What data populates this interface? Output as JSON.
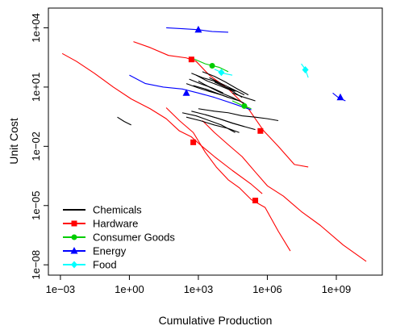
{
  "chart_data": {
    "type": "line",
    "title": "",
    "xlabel": "Cumulative Production",
    "ylabel": "Unit Cost",
    "x_scale": "log10",
    "y_scale": "log10",
    "xlim": [
      0.0003,
      100000000000
    ],
    "ylim": [
      3e-09,
      100000
    ],
    "x_ticks": [
      {
        "value": 0.001,
        "label": "1e−03"
      },
      {
        "value": 1,
        "label": "1e+00"
      },
      {
        "value": 1000,
        "label": "1e+03"
      },
      {
        "value": 1000000,
        "label": "1e+06"
      },
      {
        "value": 1000000000,
        "label": "1e+09"
      }
    ],
    "y_ticks": [
      {
        "value": 1e-08,
        "label": "1e−08"
      },
      {
        "value": 1e-05,
        "label": "1e−05"
      },
      {
        "value": 0.01,
        "label": "1e−02"
      },
      {
        "value": 10,
        "label": "1e+01"
      },
      {
        "value": 10000,
        "label": "1e+04"
      }
    ],
    "legend": {
      "position": "bottom-left",
      "entries": [
        {
          "label": "Chemicals",
          "color": "#000000",
          "marker": "none"
        },
        {
          "label": "Hardware",
          "color": "#ff0000",
          "marker": "square"
        },
        {
          "label": "Consumer Goods",
          "color": "#00cd00",
          "marker": "circle"
        },
        {
          "label": "Energy",
          "color": "#0000ff",
          "marker": "triangle"
        },
        {
          "label": "Food",
          "color": "#00ffff",
          "marker": "diamond"
        }
      ]
    },
    "series": [
      {
        "group": "Hardware",
        "color": "#ff0000",
        "x": [
          0.0012,
          0.005,
          0.03,
          0.2,
          1.2,
          8,
          40,
          150,
          500,
          1200,
          5000,
          30000,
          200000,
          600000
        ],
        "y": [
          500,
          200,
          50,
          10,
          2.5,
          0.8,
          0.25,
          0.06,
          0.03,
          0.012,
          0.003,
          0.0006,
          0.00012,
          4e-05
        ],
        "markers": [
          {
            "x": 600,
            "y": 0.016
          }
        ]
      },
      {
        "group": "Hardware",
        "color": "#ff0000",
        "x": [
          40,
          150,
          600,
          2000,
          6000,
          20000,
          60000,
          200000,
          800000,
          3000000,
          10000000
        ],
        "y": [
          0.9,
          0.2,
          0.05,
          0.005,
          0.0009,
          0.0002,
          8e-05,
          2e-05,
          8e-06,
          5e-07,
          5e-08
        ],
        "markers": [
          {
            "x": 300000,
            "y": 1.8e-05
          }
        ]
      },
      {
        "group": "Hardware",
        "color": "#ff0000",
        "x": [
          1500,
          5000,
          20000,
          80000,
          300000,
          1000000,
          5000000,
          30000000,
          200000000,
          2000000000,
          20000000000
        ],
        "y": [
          0.2,
          0.05,
          0.012,
          0.003,
          0.0005,
          0.0001,
          3e-05,
          5e-06,
          1e-06,
          1e-07,
          1.5e-08
        ]
      },
      {
        "group": "Hardware",
        "color": "#ff0000",
        "x": [
          1.5,
          8,
          50,
          300,
          800,
          3000,
          20000,
          150000,
          700000,
          3000000,
          15000000,
          60000000
        ],
        "y": [
          2000,
          1000,
          400,
          300,
          200,
          40,
          8,
          0.8,
          0.06,
          0.01,
          0.0012,
          0.0009
        ],
        "markers": [
          {
            "x": 500,
            "y": 250
          },
          {
            "x": 500000,
            "y": 0.06
          }
        ]
      },
      {
        "group": "Energy",
        "color": "#0000ff",
        "x": [
          40,
          200,
          1000,
          4000,
          20000
        ],
        "y": [
          10000,
          9000,
          8000,
          6500,
          6000
        ],
        "markers": [
          {
            "x": 1000,
            "y": 8000
          }
        ]
      },
      {
        "group": "Energy",
        "color": "#0000ff",
        "x": [
          1,
          5,
          30,
          200,
          1000,
          5000,
          30000,
          200000
        ],
        "y": [
          40,
          15,
          10,
          8,
          5,
          3,
          1.5,
          0.7
        ],
        "markers": [
          {
            "x": 300,
            "y": 5
          }
        ]
      },
      {
        "group": "Energy",
        "color": "#0000ff",
        "x": [
          700000000,
          1200000000,
          2500000000
        ],
        "y": [
          5,
          3,
          2
        ],
        "markers": [
          {
            "x": 1500000000,
            "y": 3
          }
        ]
      },
      {
        "group": "Consumer Goods",
        "color": "#00cd00",
        "x": [
          500,
          2000,
          8000,
          20000
        ],
        "y": [
          300,
          150,
          100,
          60
        ],
        "markers": [
          {
            "x": 4000,
            "y": 120
          }
        ]
      },
      {
        "group": "Consumer Goods",
        "color": "#00cd00",
        "x": [
          30000,
          80000,
          200000
        ],
        "y": [
          2,
          1.2,
          0.8
        ],
        "markers": [
          {
            "x": 100000,
            "y": 1.1
          }
        ]
      },
      {
        "group": "Food",
        "color": "#00ffff",
        "x": [
          5000,
          12000,
          30000
        ],
        "y": [
          80,
          50,
          40
        ],
        "markers": [
          {
            "x": 10000,
            "y": 55
          }
        ]
      },
      {
        "group": "Food",
        "color": "#00ffff",
        "x": [
          30000000,
          45000000,
          60000000
        ],
        "y": [
          150,
          80,
          30
        ],
        "markers": [
          {
            "x": 45000000,
            "y": 75
          }
        ]
      },
      {
        "group": "Chemicals",
        "color": "#000000",
        "x": [
          500,
          1500,
          5000,
          15000,
          40000
        ],
        "y": [
          50,
          30,
          20,
          10,
          6
        ]
      },
      {
        "group": "Chemicals",
        "color": "#000000",
        "x": [
          400,
          1200,
          4000,
          12000
        ],
        "y": [
          25,
          15,
          9,
          5
        ]
      },
      {
        "group": "Chemicals",
        "color": "#000000",
        "x": [
          800,
          2500,
          8000,
          25000,
          80000
        ],
        "y": [
          40,
          20,
          12,
          7,
          3
        ]
      },
      {
        "group": "Chemicals",
        "color": "#000000",
        "x": [
          300,
          1000,
          3000,
          10000
        ],
        "y": [
          15,
          9,
          6,
          4
        ]
      },
      {
        "group": "Chemicals",
        "color": "#000000",
        "x": [
          1000,
          3000,
          10000,
          30000,
          100000
        ],
        "y": [
          20,
          10,
          5,
          3,
          1.5
        ]
      },
      {
        "group": "Chemicals",
        "color": "#000000",
        "x": [
          2000,
          6000,
          20000,
          60000
        ],
        "y": [
          8,
          5,
          3,
          2
        ]
      },
      {
        "group": "Chemicals",
        "color": "#000000",
        "x": [
          600,
          2000,
          6000,
          20000
        ],
        "y": [
          12,
          8,
          5,
          3
        ]
      },
      {
        "group": "Chemicals",
        "color": "#000000",
        "x": [
          1500,
          5000,
          15000,
          50000,
          150000
        ],
        "y": [
          60,
          35,
          18,
          8,
          4
        ]
      },
      {
        "group": "Chemicals",
        "color": "#000000",
        "x": [
          3000,
          10000,
          30000,
          100000
        ],
        "y": [
          30,
          15,
          8,
          4
        ]
      },
      {
        "group": "Chemicals",
        "color": "#000000",
        "x": [
          5000,
          15000,
          50000
        ],
        "y": [
          18,
          10,
          6
        ]
      },
      {
        "group": "Chemicals",
        "color": "#000000",
        "x": [
          30000,
          100000,
          300000
        ],
        "y": [
          5,
          3,
          2
        ]
      },
      {
        "group": "Chemicals",
        "color": "#000000",
        "x": [
          200,
          800,
          3000,
          10000,
          40000
        ],
        "y": [
          0.5,
          0.35,
          0.2,
          0.12,
          0.05
        ]
      },
      {
        "group": "Chemicals",
        "color": "#000000",
        "x": [
          500,
          2000,
          8000,
          30000,
          100000
        ],
        "y": [
          0.6,
          0.4,
          0.25,
          0.15,
          0.1
        ]
      },
      {
        "group": "Chemicals",
        "color": "#000000",
        "x": [
          1000,
          5000,
          20000,
          80000,
          300000,
          1000000,
          3000000
        ],
        "y": [
          0.8,
          0.6,
          0.5,
          0.35,
          0.3,
          0.25,
          0.2
        ]
      },
      {
        "group": "Chemicals",
        "color": "#000000",
        "x": [
          300,
          1200,
          5000,
          20000,
          60000
        ],
        "y": [
          0.3,
          0.2,
          0.12,
          0.08,
          0.05
        ]
      },
      {
        "group": "Chemicals",
        "color": "#000000",
        "x": [
          2000,
          8000,
          30000,
          100000,
          300000
        ],
        "y": [
          0.4,
          0.25,
          0.15,
          0.1,
          0.07
        ]
      },
      {
        "group": "Chemicals",
        "color": "#000000",
        "x": [
          0.3,
          0.6,
          1.2
        ],
        "y": [
          0.3,
          0.18,
          0.12
        ]
      }
    ]
  }
}
